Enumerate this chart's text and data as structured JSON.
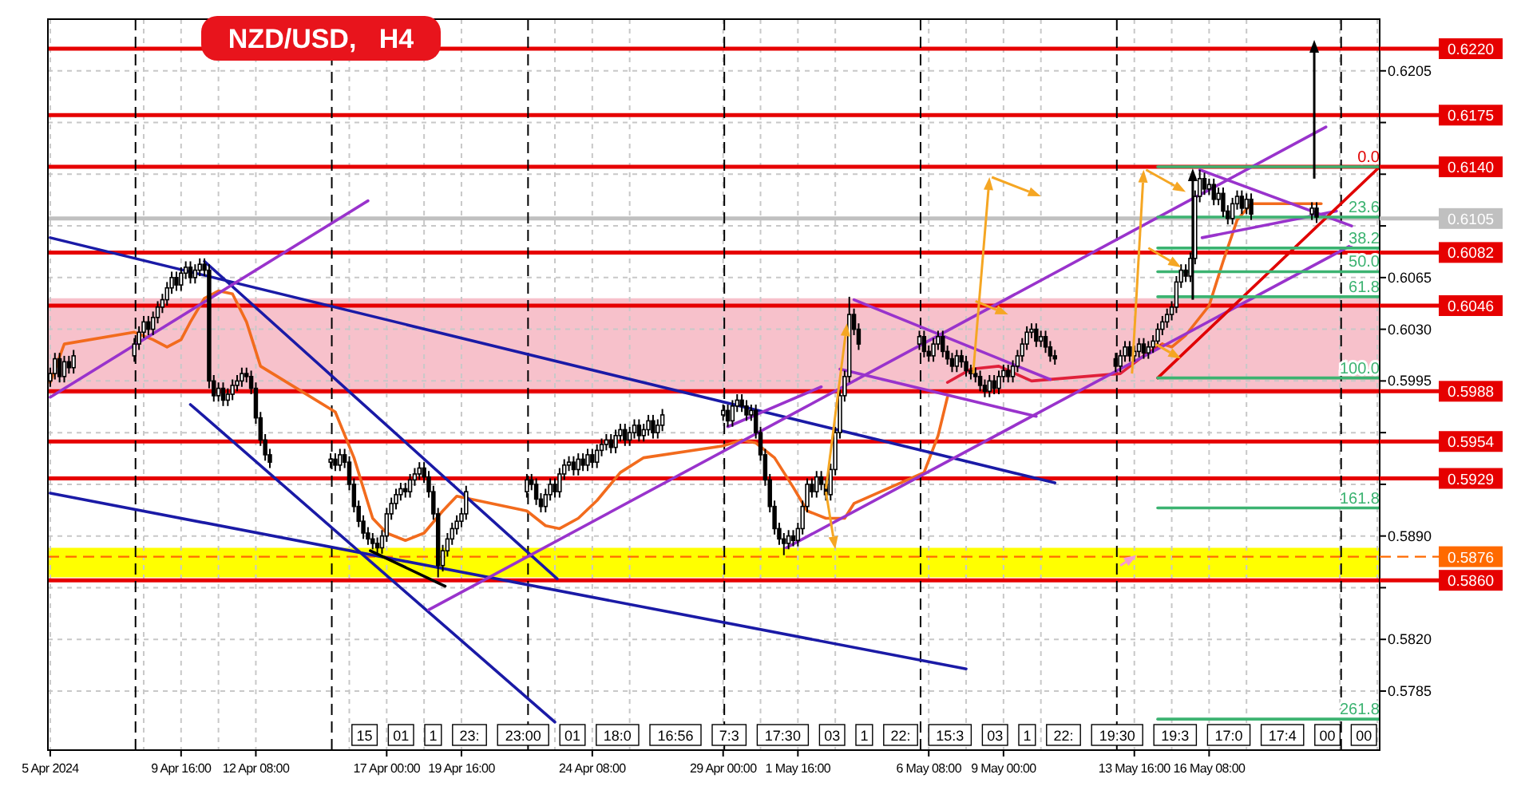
{
  "chart_data": {
    "type": "candlestick",
    "title": "NZD/USD,   H4",
    "x": [
      "2024-04-05T00:00",
      "2024-04-05T04:00",
      "2024-04-05T08:00",
      "2024-04-05T12:00",
      "2024-04-05T16:00",
      "2024-04-05T20:00",
      "2024-04-08T00:00",
      "2024-04-08T04:00",
      "2024-04-08T08:00",
      "2024-04-08T12:00",
      "2024-04-08T16:00",
      "2024-04-08T20:00",
      "2024-04-09T00:00",
      "2024-04-09T04:00",
      "2024-04-09T08:00",
      "2024-04-09T12:00",
      "2024-04-09T16:00",
      "2024-04-09T20:00",
      "2024-04-10T00:00",
      "2024-04-10T04:00",
      "2024-04-10T08:00",
      "2024-04-10T12:00",
      "2024-04-10T16:00",
      "2024-04-10T20:00",
      "2024-04-11T00:00",
      "2024-04-11T04:00",
      "2024-04-11T08:00",
      "2024-04-11T12:00",
      "2024-04-11T16:00",
      "2024-04-11T20:00",
      "2024-04-12T00:00",
      "2024-04-12T04:00",
      "2024-04-12T08:00",
      "2024-04-12T12:00",
      "2024-04-12T16:00",
      "2024-04-12T20:00",
      "2024-04-15T00:00",
      "2024-04-15T04:00",
      "2024-04-15T08:00",
      "2024-04-15T12:00",
      "2024-04-15T16:00",
      "2024-04-15T20:00",
      "2024-04-16T00:00",
      "2024-04-16T04:00",
      "2024-04-16T08:00",
      "2024-04-16T12:00",
      "2024-04-16T16:00",
      "2024-04-16T20:00",
      "2024-04-17T00:00",
      "2024-04-17T04:00",
      "2024-04-17T08:00",
      "2024-04-17T12:00",
      "2024-04-17T16:00",
      "2024-04-17T20:00",
      "2024-04-18T00:00",
      "2024-04-18T04:00",
      "2024-04-18T08:00",
      "2024-04-18T12:00",
      "2024-04-18T16:00",
      "2024-04-18T20:00",
      "2024-04-19T00:00",
      "2024-04-19T04:00",
      "2024-04-19T08:00",
      "2024-04-19T12:00",
      "2024-04-19T16:00",
      "2024-04-19T20:00",
      "2024-04-22T00:00",
      "2024-04-22T04:00",
      "2024-04-22T08:00",
      "2024-04-22T12:00",
      "2024-04-22T16:00",
      "2024-04-22T20:00",
      "2024-04-23T00:00",
      "2024-04-23T04:00",
      "2024-04-23T08:00",
      "2024-04-23T12:00",
      "2024-04-23T16:00",
      "2024-04-23T20:00",
      "2024-04-24T00:00",
      "2024-04-24T04:00",
      "2024-04-24T08:00",
      "2024-04-24T12:00",
      "2024-04-24T16:00",
      "2024-04-24T20:00",
      "2024-04-25T00:00",
      "2024-04-25T04:00",
      "2024-04-25T08:00",
      "2024-04-25T12:00",
      "2024-04-25T16:00",
      "2024-04-25T20:00",
      "2024-04-26T00:00",
      "2024-04-26T04:00",
      "2024-04-26T08:00",
      "2024-04-26T12:00",
      "2024-04-26T16:00",
      "2024-04-26T20:00",
      "2024-04-29T00:00",
      "2024-04-29T04:00",
      "2024-04-29T08:00",
      "2024-04-29T12:00",
      "2024-04-29T16:00",
      "2024-04-29T20:00",
      "2024-04-30T00:00",
      "2024-04-30T04:00",
      "2024-04-30T08:00",
      "2024-04-30T12:00",
      "2024-04-30T16:00",
      "2024-04-30T20:00",
      "2024-05-01T00:00",
      "2024-05-01T04:00",
      "2024-05-01T08:00",
      "2024-05-01T12:00",
      "2024-05-01T16:00",
      "2024-05-01T20:00",
      "2024-05-02T00:00",
      "2024-05-02T04:00",
      "2024-05-02T08:00",
      "2024-05-02T12:00",
      "2024-05-02T16:00",
      "2024-05-02T20:00",
      "2024-05-03T00:00",
      "2024-05-03T04:00",
      "2024-05-03T08:00",
      "2024-05-03T12:00",
      "2024-05-03T16:00",
      "2024-05-03T20:00",
      "2024-05-06T00:00",
      "2024-05-06T04:00",
      "2024-05-06T08:00",
      "2024-05-06T12:00",
      "2024-05-06T16:00",
      "2024-05-06T20:00",
      "2024-05-07T00:00",
      "2024-05-07T04:00",
      "2024-05-07T08:00",
      "2024-05-07T12:00",
      "2024-05-07T16:00",
      "2024-05-07T20:00",
      "2024-05-08T00:00",
      "2024-05-08T04:00",
      "2024-05-08T08:00",
      "2024-05-08T12:00",
      "2024-05-08T16:00",
      "2024-05-08T20:00",
      "2024-05-09T00:00",
      "2024-05-09T04:00",
      "2024-05-09T08:00",
      "2024-05-09T12:00",
      "2024-05-09T16:00",
      "2024-05-09T20:00",
      "2024-05-10T00:00",
      "2024-05-10T04:00",
      "2024-05-10T08:00",
      "2024-05-10T12:00",
      "2024-05-10T16:00",
      "2024-05-10T20:00",
      "2024-05-13T00:00",
      "2024-05-13T04:00",
      "2024-05-13T08:00",
      "2024-05-13T12:00",
      "2024-05-13T16:00",
      "2024-05-13T20:00",
      "2024-05-14T00:00",
      "2024-05-14T04:00",
      "2024-05-14T08:00",
      "2024-05-14T12:00",
      "2024-05-14T16:00",
      "2024-05-14T20:00",
      "2024-05-15T00:00",
      "2024-05-15T04:00",
      "2024-05-15T08:00",
      "2024-05-15T12:00",
      "2024-05-15T16:00",
      "2024-05-15T20:00",
      "2024-05-16T00:00",
      "2024-05-16T04:00",
      "2024-05-16T08:00",
      "2024-05-16T12:00",
      "2024-05-16T16:00",
      "2024-05-16T20:00",
      "2024-05-17T00:00",
      "2024-05-17T04:00",
      "2024-05-17T08:00",
      "2024-05-17T12:00",
      "2024-05-17T16:00",
      "2024-05-17T20:00",
      "2024-05-20T00:00",
      "2024-05-20T04:00"
    ],
    "xlim": [
      "2024-04-04T22:00",
      "2024-05-22T10:00"
    ],
    "xticks": [
      {
        "value": "2024-04-05T00:00",
        "label": "5 Apr 2024"
      },
      {
        "value": "2024-04-08T08:00",
        "label": null
      },
      {
        "value": "2024-04-09T16:00",
        "label": "9 Apr 16:00"
      },
      {
        "value": "2024-04-11T00:00",
        "label": null
      },
      {
        "value": "2024-04-12T08:00",
        "label": "12 Apr 08:00"
      },
      {
        "value": "2024-04-15T16:00",
        "label": null
      },
      {
        "value": "2024-04-17T00:00",
        "label": "17 Apr 00:00"
      },
      {
        "value": "2024-04-18T08:00",
        "label": null
      },
      {
        "value": "2024-04-19T16:00",
        "label": "19 Apr 16:00"
      },
      {
        "value": "2024-04-23T00:00",
        "label": null
      },
      {
        "value": "2024-04-24T08:00",
        "label": "24 Apr 08:00"
      },
      {
        "value": "2024-04-25T16:00",
        "label": null
      },
      {
        "value": "2024-04-29T00:00",
        "label": "29 Apr 00:00"
      },
      {
        "value": "2024-04-30T08:00",
        "label": null
      },
      {
        "value": "2024-05-01T16:00",
        "label": "1 May 16:00"
      },
      {
        "value": "2024-05-03T00:00",
        "label": null
      },
      {
        "value": "2024-05-06T08:00",
        "label": "6 May 08:00"
      },
      {
        "value": "2024-05-07T16:00",
        "label": null
      },
      {
        "value": "2024-05-09T00:00",
        "label": "9 May 00:00"
      },
      {
        "value": "2024-05-10T08:00",
        "label": null
      },
      {
        "value": "2024-05-13T16:00",
        "label": "13 May 16:00"
      },
      {
        "value": "2024-05-15T00:00",
        "label": null
      },
      {
        "value": "2024-05-16T08:00",
        "label": "16 May 08:00"
      },
      {
        "value": "2024-05-17T16:00",
        "label": null
      },
      {
        "value": "2024-05-21T00:00",
        "label": null
      },
      {
        "value": "2024-05-22T08:00",
        "label": null
      }
    ],
    "ohlc": [
      [
        0.5995,
        0.6004,
        0.5991,
        0.6
      ],
      [
        0.6,
        0.6014,
        0.5996,
        0.601
      ],
      [
        0.601,
        0.6014,
        0.5994,
        0.5998
      ],
      [
        0.5998,
        0.6012,
        0.5994,
        0.6008
      ],
      [
        0.6008,
        0.6012,
        0.6,
        0.6004
      ],
      [
        0.6004,
        0.6016,
        0.6,
        0.6012
      ],
      [
        0.6012,
        0.6024,
        0.6008,
        0.602
      ],
      [
        0.602,
        0.6032,
        0.6016,
        0.6028
      ],
      [
        0.6028,
        0.6039,
        0.6024,
        0.6035
      ],
      [
        0.6035,
        0.6039,
        0.6026,
        0.603
      ],
      [
        0.603,
        0.6042,
        0.6026,
        0.6038
      ],
      [
        0.6038,
        0.6049,
        0.6034,
        0.6045
      ],
      [
        0.6045,
        0.6054,
        0.6041,
        0.605
      ],
      [
        0.605,
        0.6062,
        0.6046,
        0.6058
      ],
      [
        0.6058,
        0.6069,
        0.6054,
        0.6065
      ],
      [
        0.6065,
        0.6069,
        0.6056,
        0.606
      ],
      [
        0.606,
        0.6072,
        0.6056,
        0.6068
      ],
      [
        0.6068,
        0.6076,
        0.6064,
        0.6072
      ],
      [
        0.6072,
        0.6076,
        0.6061,
        0.6065
      ],
      [
        0.6065,
        0.6074,
        0.6061,
        0.607
      ],
      [
        0.607,
        0.6078,
        0.6066,
        0.6074
      ],
      [
        0.6074,
        0.6078,
        0.6066,
        0.607
      ],
      [
        0.607,
        0.6074,
        0.599,
        0.5995
      ],
      [
        0.5995,
        0.5999,
        0.5981,
        0.5985
      ],
      [
        0.5985,
        0.5994,
        0.5981,
        0.599
      ],
      [
        0.599,
        0.5994,
        0.5978,
        0.5982
      ],
      [
        0.5982,
        0.599,
        0.5978,
        0.5986
      ],
      [
        0.5986,
        0.5996,
        0.5982,
        0.5992
      ],
      [
        0.5992,
        0.5999,
        0.5988,
        0.5995
      ],
      [
        0.5995,
        0.6004,
        0.5991,
        0.6
      ],
      [
        0.6,
        0.6004,
        0.5994,
        0.5998
      ],
      [
        0.5998,
        0.6002,
        0.5986,
        0.599
      ],
      [
        0.599,
        0.5994,
        0.5966,
        0.597
      ],
      [
        0.597,
        0.5974,
        0.5951,
        0.5955
      ],
      [
        0.5955,
        0.5959,
        0.5941,
        0.5945
      ],
      [
        0.5945,
        0.5949,
        0.5936,
        0.594
      ],
      [
        0.594,
        0.5946,
        0.5936,
        0.5942
      ],
      [
        0.5942,
        0.5946,
        0.5934,
        0.5938
      ],
      [
        0.5938,
        0.5949,
        0.5934,
        0.5945
      ],
      [
        0.5945,
        0.5949,
        0.5936,
        0.594
      ],
      [
        0.594,
        0.5944,
        0.5921,
        0.5925
      ],
      [
        0.5925,
        0.5929,
        0.5906,
        0.591
      ],
      [
        0.591,
        0.5914,
        0.5896,
        0.59
      ],
      [
        0.59,
        0.5904,
        0.5888,
        0.5892
      ],
      [
        0.5892,
        0.5896,
        0.5884,
        0.5888
      ],
      [
        0.5888,
        0.5892,
        0.5881,
        0.5885
      ],
      [
        0.5885,
        0.5889,
        0.5878,
        0.5882
      ],
      [
        0.5882,
        0.5894,
        0.5878,
        0.589
      ],
      [
        0.589,
        0.5909,
        0.5886,
        0.5905
      ],
      [
        0.5905,
        0.5916,
        0.5901,
        0.5912
      ],
      [
        0.5912,
        0.5922,
        0.5908,
        0.5918
      ],
      [
        0.5918,
        0.5926,
        0.5914,
        0.5922
      ],
      [
        0.5922,
        0.5926,
        0.5916,
        0.592
      ],
      [
        0.592,
        0.5932,
        0.5916,
        0.5928
      ],
      [
        0.5928,
        0.5936,
        0.5924,
        0.5932
      ],
      [
        0.5932,
        0.594,
        0.5928,
        0.5936
      ],
      [
        0.5936,
        0.594,
        0.5926,
        0.593
      ],
      [
        0.593,
        0.5934,
        0.5916,
        0.592
      ],
      [
        0.592,
        0.5924,
        0.5901,
        0.5905
      ],
      [
        0.5905,
        0.5909,
        0.5862,
        0.587
      ],
      [
        0.587,
        0.5884,
        0.5866,
        0.588
      ],
      [
        0.588,
        0.5892,
        0.5876,
        0.5888
      ],
      [
        0.5888,
        0.5899,
        0.5884,
        0.5895
      ],
      [
        0.5895,
        0.5904,
        0.5891,
        0.59
      ],
      [
        0.59,
        0.5909,
        0.5896,
        0.5905
      ],
      [
        0.5905,
        0.5924,
        0.5901,
        0.592
      ],
      [
        0.592,
        0.5932,
        0.5916,
        0.5928
      ],
      [
        0.5928,
        0.5932,
        0.5921,
        0.5925
      ],
      [
        0.5925,
        0.5929,
        0.5911,
        0.5915
      ],
      [
        0.5915,
        0.5919,
        0.5906,
        0.591
      ],
      [
        0.591,
        0.5922,
        0.5906,
        0.5918
      ],
      [
        0.5918,
        0.5929,
        0.5914,
        0.5925
      ],
      [
        0.5925,
        0.5929,
        0.5916,
        0.592
      ],
      [
        0.592,
        0.5936,
        0.5916,
        0.5932
      ],
      [
        0.5932,
        0.5942,
        0.5928,
        0.5938
      ],
      [
        0.5938,
        0.5944,
        0.5934,
        0.594
      ],
      [
        0.594,
        0.5944,
        0.5931,
        0.5935
      ],
      [
        0.5935,
        0.5946,
        0.5931,
        0.5942
      ],
      [
        0.5942,
        0.5946,
        0.5934,
        0.5938
      ],
      [
        0.5938,
        0.5949,
        0.5934,
        0.5945
      ],
      [
        0.5945,
        0.5949,
        0.5936,
        0.594
      ],
      [
        0.594,
        0.5952,
        0.5936,
        0.5948
      ],
      [
        0.5948,
        0.5956,
        0.5944,
        0.5952
      ],
      [
        0.5952,
        0.5959,
        0.5948,
        0.5955
      ],
      [
        0.5955,
        0.5959,
        0.5946,
        0.595
      ],
      [
        0.595,
        0.5962,
        0.5946,
        0.5958
      ],
      [
        0.5958,
        0.5966,
        0.5954,
        0.5962
      ],
      [
        0.5962,
        0.5966,
        0.5951,
        0.5955
      ],
      [
        0.5955,
        0.5964,
        0.5951,
        0.596
      ],
      [
        0.596,
        0.5969,
        0.5956,
        0.5965
      ],
      [
        0.5965,
        0.5969,
        0.5954,
        0.5958
      ],
      [
        0.5958,
        0.5966,
        0.5954,
        0.5962
      ],
      [
        0.5962,
        0.5972,
        0.5958,
        0.5968
      ],
      [
        0.5968,
        0.5972,
        0.5956,
        0.596
      ],
      [
        0.596,
        0.5969,
        0.5956,
        0.5965
      ],
      [
        0.5965,
        0.5976,
        0.5961,
        0.5972
      ],
      [
        0.5972,
        0.5979,
        0.5968,
        0.5975
      ],
      [
        0.5975,
        0.5979,
        0.5964,
        0.5968
      ],
      [
        0.5968,
        0.5982,
        0.5964,
        0.5978
      ],
      [
        0.5978,
        0.5986,
        0.5974,
        0.5982
      ],
      [
        0.5982,
        0.5986,
        0.5974,
        0.5978
      ],
      [
        0.5978,
        0.5982,
        0.5968,
        0.5972
      ],
      [
        0.5972,
        0.5979,
        0.5968,
        0.5975
      ],
      [
        0.5975,
        0.5979,
        0.5956,
        0.596
      ],
      [
        0.596,
        0.5964,
        0.5941,
        0.5945
      ],
      [
        0.5945,
        0.5949,
        0.5924,
        0.5928
      ],
      [
        0.5928,
        0.5932,
        0.5906,
        0.591
      ],
      [
        0.591,
        0.5914,
        0.5891,
        0.5895
      ],
      [
        0.5895,
        0.5899,
        0.5884,
        0.5888
      ],
      [
        0.5888,
        0.5892,
        0.5877,
        0.5885
      ],
      [
        0.5885,
        0.5894,
        0.5881,
        0.589
      ],
      [
        0.589,
        0.5894,
        0.5883,
        0.5887
      ],
      [
        0.5887,
        0.5899,
        0.5883,
        0.5895
      ],
      [
        0.5895,
        0.5914,
        0.5891,
        0.591
      ],
      [
        0.591,
        0.5929,
        0.5906,
        0.5925
      ],
      [
        0.5925,
        0.5929,
        0.5916,
        0.592
      ],
      [
        0.592,
        0.5934,
        0.5916,
        0.593
      ],
      [
        0.593,
        0.5934,
        0.5921,
        0.5925
      ],
      [
        0.5925,
        0.5929,
        0.5914,
        0.5918
      ],
      [
        0.5918,
        0.5939,
        0.5914,
        0.5935
      ],
      [
        0.5935,
        0.5964,
        0.5931,
        0.596
      ],
      [
        0.596,
        0.5989,
        0.5956,
        0.5985
      ],
      [
        0.5985,
        0.6002,
        0.5981,
        0.5998
      ],
      [
        0.5998,
        0.6052,
        0.5994,
        0.604
      ],
      [
        0.604,
        0.6044,
        0.6026,
        0.603
      ],
      [
        0.603,
        0.6034,
        0.6016,
        0.602
      ],
      [
        0.602,
        0.6029,
        0.6016,
        0.6025
      ],
      [
        0.6025,
        0.6029,
        0.6011,
        0.6015
      ],
      [
        0.6015,
        0.6019,
        0.6008,
        0.6012
      ],
      [
        0.6012,
        0.6024,
        0.6008,
        0.602
      ],
      [
        0.602,
        0.6029,
        0.6016,
        0.6025
      ],
      [
        0.6025,
        0.6029,
        0.6011,
        0.6015
      ],
      [
        0.6015,
        0.6019,
        0.6006,
        0.601
      ],
      [
        0.601,
        0.6014,
        0.6001,
        0.6005
      ],
      [
        0.6005,
        0.6016,
        0.6001,
        0.6012
      ],
      [
        0.6012,
        0.6016,
        0.6004,
        0.6008
      ],
      [
        0.6008,
        0.6012,
        0.5998,
        0.6002
      ],
      [
        0.6002,
        0.6006,
        0.5996,
        0.6
      ],
      [
        0.6,
        0.6004,
        0.5994,
        0.5998
      ],
      [
        0.5998,
        0.6002,
        0.5988,
        0.5992
      ],
      [
        0.5992,
        0.5996,
        0.5984,
        0.5988
      ],
      [
        0.5988,
        0.5999,
        0.5984,
        0.5995
      ],
      [
        0.5995,
        0.5999,
        0.5986,
        0.599
      ],
      [
        0.599,
        0.6002,
        0.5986,
        0.5998
      ],
      [
        0.5998,
        0.6006,
        0.5994,
        0.6002
      ],
      [
        0.6002,
        0.6006,
        0.5994,
        0.5998
      ],
      [
        0.5998,
        0.6009,
        0.5994,
        0.6005
      ],
      [
        0.6005,
        0.6016,
        0.6001,
        0.6012
      ],
      [
        0.6012,
        0.6024,
        0.6008,
        0.602
      ],
      [
        0.602,
        0.6032,
        0.6016,
        0.6028
      ],
      [
        0.6028,
        0.6034,
        0.6024,
        0.603
      ],
      [
        0.603,
        0.6034,
        0.6018,
        0.6022
      ],
      [
        0.6022,
        0.6029,
        0.6018,
        0.6025
      ],
      [
        0.6025,
        0.6029,
        0.6014,
        0.6018
      ],
      [
        0.6018,
        0.6022,
        0.6008,
        0.6012
      ],
      [
        0.6012,
        0.6016,
        0.6006,
        0.601
      ],
      [
        0.601,
        0.6014,
        0.6001,
        0.6005
      ],
      [
        0.6005,
        0.6016,
        0.6001,
        0.6012
      ],
      [
        0.6012,
        0.6022,
        0.6008,
        0.6018
      ],
      [
        0.6018,
        0.6022,
        0.6008,
        0.6012
      ],
      [
        0.6012,
        0.6019,
        0.6008,
        0.6015
      ],
      [
        0.6015,
        0.6024,
        0.6011,
        0.602
      ],
      [
        0.602,
        0.6024,
        0.601,
        0.6014
      ],
      [
        0.6014,
        0.6022,
        0.601,
        0.6018
      ],
      [
        0.6018,
        0.6026,
        0.6014,
        0.6022
      ],
      [
        0.6022,
        0.6034,
        0.6018,
        0.603
      ],
      [
        0.603,
        0.6039,
        0.6026,
        0.6035
      ],
      [
        0.6035,
        0.6044,
        0.6031,
        0.604
      ],
      [
        0.604,
        0.6049,
        0.6036,
        0.6045
      ],
      [
        0.6045,
        0.6066,
        0.6041,
        0.6062
      ],
      [
        0.6062,
        0.6074,
        0.6058,
        0.607
      ],
      [
        0.607,
        0.6074,
        0.6062,
        0.6066
      ],
      [
        0.6066,
        0.6082,
        0.6062,
        0.6078
      ],
      [
        0.6078,
        0.6124,
        0.6074,
        0.612
      ],
      [
        0.612,
        0.6138,
        0.6116,
        0.6132
      ],
      [
        0.6132,
        0.6136,
        0.6121,
        0.6125
      ],
      [
        0.6125,
        0.6132,
        0.6121,
        0.6128
      ],
      [
        0.6128,
        0.6132,
        0.6114,
        0.6118
      ],
      [
        0.6118,
        0.6126,
        0.6114,
        0.6122
      ],
      [
        0.6122,
        0.6126,
        0.6106,
        0.611
      ],
      [
        0.611,
        0.6114,
        0.6101,
        0.6105
      ],
      [
        0.6105,
        0.6119,
        0.6101,
        0.6115
      ],
      [
        0.6115,
        0.6124,
        0.6111,
        0.612
      ],
      [
        0.612,
        0.6124,
        0.6108,
        0.6112
      ],
      [
        0.6112,
        0.6122,
        0.6108,
        0.6118
      ],
      [
        0.6118,
        0.6122,
        0.6104,
        0.6108
      ],
      [
        0.6108,
        0.6116,
        0.6104,
        0.6112
      ],
      [
        0.6112,
        0.6116,
        0.6102,
        0.6106
      ]
    ],
    "series": [
      {
        "type": "line",
        "color": "#f26b1d",
        "x": [
          "2024-04-05T00:00",
          "2024-04-05T12:00",
          "2024-04-08T00:00",
          "2024-04-08T16:00",
          "2024-04-09T04:00",
          "2024-04-09T16:00",
          "2024-04-10T00:00",
          "2024-04-10T12:00",
          "2024-04-11T00:00",
          "2024-04-11T12:00",
          "2024-04-12T00:00",
          "2024-04-12T12:00",
          "2024-04-15T04:00",
          "2024-04-15T20:00",
          "2024-04-16T12:00",
          "2024-04-17T00:00",
          "2024-04-17T16:00",
          "2024-04-18T08:00",
          "2024-04-19T00:00",
          "2024-04-19T12:00",
          "2024-04-22T00:00",
          "2024-04-22T16:00",
          "2024-04-23T04:00",
          "2024-04-23T20:00",
          "2024-04-24T12:00",
          "2024-04-25T08:00",
          "2024-04-26T04:00",
          "2024-04-29T00:00",
          "2024-04-29T16:00",
          "2024-04-30T04:00",
          "2024-04-30T20:00",
          "2024-05-01T12:00",
          "2024-05-02T00:00",
          "2024-05-02T16:00",
          "2024-05-03T08:00",
          "2024-05-03T16:00",
          "2024-05-06T04:00",
          "2024-05-06T16:00",
          "2024-05-07T00:00"
        ],
        "values": [
          0.5994,
          0.602,
          0.6028,
          0.6023,
          0.6018,
          0.6023,
          0.6035,
          0.6051,
          0.6056,
          0.6054,
          0.6035,
          0.6005,
          0.5974,
          0.5943,
          0.5902,
          0.5892,
          0.5887,
          0.5892,
          0.5907,
          0.5917,
          0.5907,
          0.5897,
          0.5895,
          0.5902,
          0.5914,
          0.5933,
          0.5943,
          0.5951,
          0.5955,
          0.5953,
          0.5943,
          0.5923,
          0.5907,
          0.5902,
          0.5902,
          0.5912,
          0.5933,
          0.5958,
          0.5984
        ]
      },
      {
        "type": "line",
        "color": "#e0203a",
        "x": [
          "2024-05-07T00:00",
          "2024-05-07T20:00",
          "2024-05-08T20:00",
          "2024-05-10T00:00",
          "2024-05-13T04:00",
          "2024-05-14T00:00",
          "2024-05-14T16:00"
        ],
        "values": [
          0.5994,
          0.6003,
          0.6005,
          0.5995,
          0.6,
          0.6012,
          0.602
        ]
      },
      {
        "type": "line",
        "color": "#f26b1d",
        "x": [
          "2024-05-14T16:00",
          "2024-05-15T00:00",
          "2024-05-15T12:00",
          "2024-05-16T08:00",
          "2024-05-16T20:00",
          "2024-05-17T08:00",
          "2024-05-17T20:00",
          "2024-05-20T08:00"
        ],
        "values": [
          0.602,
          0.6018,
          0.6026,
          0.6046,
          0.6076,
          0.6104,
          0.6115,
          0.6115
        ]
      },
      {
        "type": "line",
        "color": "#1a1aa6",
        "x": [
          "2024-04-05T00:00",
          "2024-05-10T20:00"
        ],
        "values": [
          0.6092,
          0.5926
        ]
      },
      {
        "type": "line",
        "color": "#1a1aa6",
        "x": [
          "2024-04-10T12:00",
          "2024-04-23T02:00"
        ],
        "values": [
          0.6076,
          0.5861
        ]
      },
      {
        "type": "line",
        "color": "#1a1aa6",
        "x": [
          "2024-04-10T00:00",
          "2024-04-23T00:00"
        ],
        "values": [
          0.5979,
          0.5764
        ]
      },
      {
        "type": "line",
        "color": "#1a1aa6",
        "x": [
          "2024-04-05T00:00",
          "2024-05-07T16:00"
        ],
        "values": [
          0.5919,
          0.58
        ]
      },
      {
        "type": "line",
        "color": "#000000",
        "x": [
          "2024-04-16T10:00",
          "2024-04-19T02:00"
        ],
        "values": [
          0.588,
          0.5856
        ]
      },
      {
        "type": "line",
        "color": "#9933cc",
        "x": [
          "2024-04-05T00:00",
          "2024-04-16T08:00"
        ],
        "values": [
          0.5984,
          0.6117
        ]
      },
      {
        "type": "line",
        "color": "#9933cc",
        "x": [
          "2024-04-18T12:00",
          "2024-05-20T12:00"
        ],
        "values": [
          0.584,
          0.6167
        ]
      },
      {
        "type": "line",
        "color": "#9933cc",
        "x": [
          "2024-04-29T04:00",
          "2024-05-02T12:00"
        ],
        "values": [
          0.5964,
          0.5991
        ]
      },
      {
        "type": "line",
        "color": "#9933cc",
        "x": [
          "2024-05-01T06:00",
          "2024-05-21T10:00"
        ],
        "values": [
          0.5882,
          0.6087
        ]
      },
      {
        "type": "line",
        "color": "#9933cc",
        "x": [
          "2024-05-03T16:00",
          "2024-05-10T16:00"
        ],
        "values": [
          0.605,
          0.5996
        ]
      },
      {
        "type": "line",
        "color": "#9933cc",
        "x": [
          "2024-05-03T04:00",
          "2024-05-10T04:00"
        ],
        "values": [
          0.6003,
          0.5971
        ]
      },
      {
        "type": "line",
        "color": "#9933cc",
        "x": [
          "2024-05-16T00:00",
          "2024-05-21T10:00"
        ],
        "values": [
          0.6138,
          0.61
        ]
      },
      {
        "type": "line",
        "color": "#9933cc",
        "x": [
          "2024-05-16T02:00",
          "2024-05-20T21:00"
        ],
        "values": [
          0.6092,
          0.611
        ]
      },
      {
        "type": "line",
        "color": "#e00000",
        "x": [
          "2024-05-14T12:00",
          "2024-05-22T10:00"
        ],
        "values": [
          0.5997,
          0.614
        ]
      },
      {
        "type": "line",
        "color": "#3cb371",
        "x": [
          "2024-05-14T12:00",
          "2024-05-22T10:00"
        ],
        "values": [
          0.614,
          0.614
        ]
      },
      {
        "type": "line",
        "color": "#3cb371",
        "x": [
          "2024-05-14T12:00",
          "2024-05-22T10:00"
        ],
        "values": [
          0.6106,
          0.6106
        ]
      },
      {
        "type": "line",
        "color": "#3cb371",
        "x": [
          "2024-05-14T12:00",
          "2024-05-22T10:00"
        ],
        "values": [
          0.6085,
          0.6085
        ]
      },
      {
        "type": "line",
        "color": "#3cb371",
        "x": [
          "2024-05-14T12:00",
          "2024-05-22T10:00"
        ],
        "values": [
          0.6069,
          0.6069
        ]
      },
      {
        "type": "line",
        "color": "#3cb371",
        "x": [
          "2024-05-14T12:00",
          "2024-05-22T10:00"
        ],
        "values": [
          0.6052,
          0.6052
        ]
      },
      {
        "type": "line",
        "color": "#3cb371",
        "x": [
          "2024-05-14T12:00",
          "2024-05-22T10:00"
        ],
        "values": [
          0.5997,
          0.5997
        ]
      },
      {
        "type": "line",
        "color": "#3cb371",
        "x": [
          "2024-05-14T12:00",
          "2024-05-22T10:00"
        ],
        "values": [
          0.5909,
          0.5909
        ]
      },
      {
        "type": "line",
        "color": "#3cb371",
        "x": [
          "2024-05-14T12:00",
          "2024-05-22T10:00"
        ],
        "values": [
          0.5766,
          0.5766
        ]
      }
    ],
    "ylim": [
      0.5745,
      0.624
    ],
    "yticks": [
      0.5785,
      {
        "value": 0.582,
        "label": "0.5820"
      },
      {
        "value": 0.5855,
        "label": null
      },
      {
        "value": 0.589,
        "label": "0.5890"
      },
      {
        "value": 0.5925,
        "label": null
      },
      {
        "value": 0.596,
        "label": null
      },
      0.5995,
      {
        "value": 0.603,
        "label": "0.6030"
      },
      0.6065,
      {
        "value": 0.61,
        "label": null
      },
      {
        "value": 0.6135,
        "label": null
      },
      {
        "value": 0.617,
        "label": null
      },
      0.6205
    ],
    "grid": true,
    "ref_lines": [
      {
        "axis": "y",
        "value": 0.622,
        "label": "0.6220",
        "color": "#e60000"
      },
      {
        "axis": "y",
        "value": 0.6175,
        "label": "0.6175",
        "color": "#e60000"
      },
      {
        "axis": "y",
        "value": 0.614,
        "label": "0.6140",
        "color": "#e60000"
      },
      {
        "axis": "y",
        "value": 0.6105,
        "label": "0.6105",
        "color": "#c0c0c0"
      },
      {
        "axis": "y",
        "value": 0.6082,
        "label": "0.6082",
        "color": "#e60000"
      },
      {
        "axis": "y",
        "value": 0.6046,
        "label": "0.6046",
        "color": "#e60000"
      },
      {
        "axis": "y",
        "value": 0.5988,
        "label": "0.5988",
        "color": "#e60000"
      },
      {
        "axis": "y",
        "value": 0.5954,
        "label": "0.5954",
        "color": "#e60000"
      },
      {
        "axis": "y",
        "value": 0.5929,
        "label": "0.5929",
        "color": "#e60000"
      },
      {
        "axis": "y",
        "value": 0.5876,
        "label": "0.5876",
        "color": "#ff6a00",
        "line_style": "dashed"
      },
      {
        "axis": "y",
        "value": 0.586,
        "label": "0.5860",
        "color": "#e60000"
      },
      {
        "axis": "x",
        "value": "2024-04-08T01:00",
        "color": "#000000",
        "line_style": "dashed"
      },
      {
        "axis": "x",
        "value": "2024-04-15T01:00",
        "color": "#000000",
        "line_style": "dashed"
      },
      {
        "axis": "x",
        "value": "2024-04-22T01:00",
        "color": "#000000",
        "line_style": "dashed"
      },
      {
        "axis": "x",
        "value": "2024-04-29T01:00",
        "color": "#000000",
        "line_style": "dashed"
      },
      {
        "axis": "x",
        "value": "2024-05-06T01:00",
        "color": "#000000",
        "line_style": "dashed"
      },
      {
        "axis": "x",
        "value": "2024-05-13T01:00",
        "color": "#000000",
        "line_style": "dashed"
      },
      {
        "axis": "x",
        "value": "2024-05-21T01:00",
        "color": "#000000",
        "line_style": "dashed"
      }
    ],
    "bands": [
      {
        "axis": "y",
        "from": 0.5986,
        "to": 0.6051,
        "color": "#f7c1cb"
      },
      {
        "axis": "y",
        "from": 0.5862,
        "to": 0.5882,
        "color": "#ffff00"
      }
    ],
    "annotations": [
      {
        "text": "0.0",
        "x": "2024-05-22T10:00",
        "y": 0.614
      },
      {
        "text": "23.6",
        "x": "2024-05-22T10:00",
        "y": 0.6106
      },
      {
        "text": "38.2",
        "x": "2024-05-22T10:00",
        "y": 0.6085
      },
      {
        "text": "50.0",
        "x": "2024-05-22T10:00",
        "y": 0.6069
      },
      {
        "text": "61.8",
        "x": "2024-05-22T10:00",
        "y": 0.6052
      },
      {
        "text": "100.0",
        "x": "2024-05-22T10:00",
        "y": 0.5997
      },
      {
        "text": "161.8",
        "x": "2024-05-22T10:00",
        "y": 0.5909
      },
      {
        "text": "261.8",
        "x": "2024-05-22T10:00",
        "y": 0.5766
      },
      "15",
      "01",
      "1",
      "23:",
      "23:00",
      "01",
      "18:0",
      "16:56",
      "7:3",
      "17:30",
      "03",
      "1",
      "22:",
      "15:3",
      "03",
      "1",
      "22:",
      "19:30",
      "19:3",
      "17:0",
      "17:4",
      "00",
      "00"
    ]
  }
}
